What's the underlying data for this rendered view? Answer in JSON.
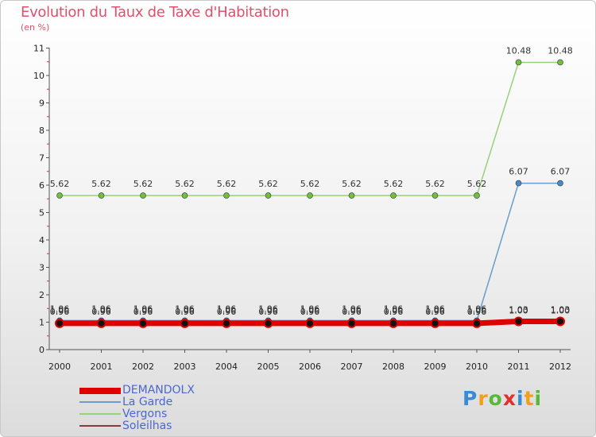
{
  "chart_data": {
    "type": "line",
    "title": "Evolution du Taux de Taxe d'Habitation",
    "subtitle": "(en %)",
    "xlabel": "",
    "ylabel": "",
    "categories": [
      "2000",
      "2001",
      "2002",
      "2003",
      "2004",
      "2005",
      "2006",
      "2007",
      "2008",
      "2009",
      "2010",
      "2011",
      "2012"
    ],
    "ylim": [
      0,
      11
    ],
    "yticks": [
      "0",
      "1",
      "2",
      "3",
      "4",
      "5",
      "6",
      "7",
      "8",
      "9",
      "10",
      "11"
    ],
    "legend_position": "bottom-left",
    "series": [
      {
        "name": "DEMANDOLX",
        "color": "#e00000",
        "values": [
          0.96,
          0.96,
          0.96,
          0.96,
          0.96,
          0.96,
          0.96,
          0.96,
          0.96,
          0.96,
          0.96,
          1.03,
          1.03
        ],
        "labels": [
          "0.96",
          "0.96",
          "0.96",
          "0.96",
          "0.96",
          "0.96",
          "0.96",
          "0.96",
          "0.96",
          "0.96",
          "0.96",
          "1.03",
          "1.03"
        ]
      },
      {
        "name": "La Garde",
        "color": "#6a9ccf",
        "values": [
          1.06,
          1.06,
          1.06,
          1.06,
          1.06,
          1.06,
          1.06,
          1.06,
          1.06,
          1.06,
          1.06,
          6.07,
          6.07
        ],
        "labels": [
          "1.06",
          "1.06",
          "1.06",
          "1.06",
          "1.06",
          "1.06",
          "1.06",
          "1.06",
          "1.06",
          "1.06",
          "1.06",
          "6.07",
          "6.07"
        ]
      },
      {
        "name": "Vergons",
        "color": "#9ad07a",
        "values": [
          5.62,
          5.62,
          5.62,
          5.62,
          5.62,
          5.62,
          5.62,
          5.62,
          5.62,
          5.62,
          5.62,
          10.48,
          10.48
        ],
        "labels": [
          "5.62",
          "5.62",
          "5.62",
          "5.62",
          "5.62",
          "5.62",
          "5.62",
          "5.62",
          "5.62",
          "5.62",
          "5.62",
          "10.48",
          "10.48"
        ]
      },
      {
        "name": "Soleilhas",
        "color": "#8a3a3a",
        "values": [
          1.0,
          1.0,
          1.0,
          1.0,
          1.0,
          1.0,
          1.0,
          1.0,
          1.0,
          1.0,
          1.0,
          1.0,
          1.0
        ],
        "labels": [
          "1.00",
          "1.00",
          "1.00",
          "1.00",
          "1.00",
          "1.00",
          "1.00",
          "1.00",
          "1.00",
          "1.00",
          "1.00",
          "1.00",
          "1.00"
        ]
      }
    ]
  },
  "logo": {
    "text": "Proxiti",
    "letters": [
      "P",
      "r",
      "o",
      "x",
      "i",
      "t",
      "i"
    ],
    "colors": [
      "#3a8ad8",
      "#f0a020",
      "#58b838",
      "#e03030",
      "#3a8ad8",
      "#f0a020",
      "#58b838"
    ]
  }
}
